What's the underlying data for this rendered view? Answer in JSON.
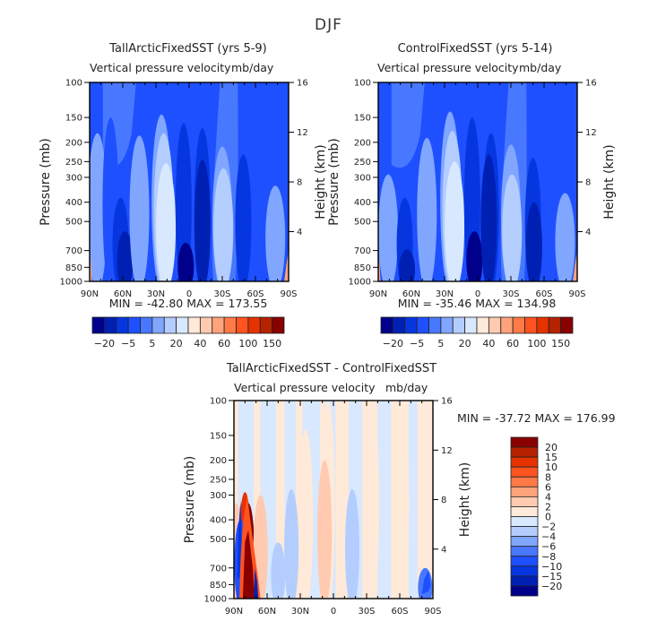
{
  "figure": {
    "title": "DJF"
  },
  "chart_data": [
    {
      "type": "heatmap",
      "id": "panel-tallarctic",
      "title": "TallArcticFixedSST (yrs 5-9)",
      "subtitle_left": "Vertical pressure velocity",
      "subtitle_right": "mb/day",
      "xlabel": "",
      "ylabel": "Pressure (mb)",
      "ylabel_right": "Height (km)",
      "x_ticks": [
        "90N",
        "60N",
        "30N",
        "0",
        "30S",
        "60S",
        "90S"
      ],
      "x_range": [
        90,
        -90
      ],
      "y_ticks": [
        "100",
        "150",
        "200",
        "250",
        "300",
        "400",
        "500",
        "700",
        "850",
        "1000"
      ],
      "y_tick_values": [
        100,
        150,
        200,
        250,
        300,
        400,
        500,
        700,
        850,
        1000
      ],
      "y_range": [
        1000,
        100
      ],
      "y_scale": "log",
      "y_right_ticks": [
        "4",
        "8",
        "12",
        "16"
      ],
      "stats": "MIN = -42.80   MAX = 173.55",
      "min": -42.8,
      "max": 173.55,
      "colorbar": {
        "orientation": "horizontal",
        "labels": [
          "-20",
          "-5",
          "5",
          "20",
          "40",
          "60",
          "100",
          "150"
        ],
        "colors": [
          "#00008b",
          "#0020b4",
          "#0536e0",
          "#1e50ff",
          "#4878ff",
          "#80a6ff",
          "#b4cdff",
          "#d7e8ff",
          "#ffe9d8",
          "#ffcab0",
          "#ffa47a",
          "#ff7a46",
          "#ff5320",
          "#e63200",
          "#b42200",
          "#880000"
        ]
      },
      "features": [
        {
          "lat": 83,
          "p_top": 180,
          "level": 5
        },
        {
          "lat": 71,
          "p_top": 150,
          "level": 3
        },
        {
          "lat": 62,
          "p_top": 380,
          "level": 2
        },
        {
          "lat": 58,
          "p_top": 560,
          "level": 1
        },
        {
          "lat": 45,
          "p_top": 185,
          "level": 5
        },
        {
          "lat": 25,
          "p_top": 145,
          "level": 5
        },
        {
          "lat": 23,
          "p_top": 180,
          "level": 6
        },
        {
          "lat": 21,
          "p_top": 255,
          "level": 7
        },
        {
          "lat": 5,
          "p_top": 160,
          "level": 2
        },
        {
          "lat": 3,
          "p_top": 640,
          "level": 0
        },
        {
          "lat": -12,
          "p_top": 170,
          "level": 2
        },
        {
          "lat": -12,
          "p_top": 245,
          "level": 1
        },
        {
          "lat": -30,
          "p_top": 210,
          "level": 5
        },
        {
          "lat": -31,
          "p_top": 270,
          "level": 6
        },
        {
          "lat": -49,
          "p_top": 230,
          "level": 2
        },
        {
          "lat": -78,
          "p_top": 330,
          "level": 5
        }
      ]
    },
    {
      "type": "heatmap",
      "id": "panel-control",
      "title": "ControlFixedSST (yrs 5-14)",
      "subtitle_left": "Vertical pressure velocity",
      "subtitle_right": "mb/day",
      "xlabel": "",
      "ylabel": "Pressure (mb)",
      "ylabel_right": "Height (km)",
      "x_ticks": [
        "90N",
        "60N",
        "30N",
        "0",
        "30S",
        "60S",
        "90S"
      ],
      "x_range": [
        90,
        -90
      ],
      "y_ticks": [
        "100",
        "150",
        "200",
        "250",
        "300",
        "400",
        "500",
        "700",
        "850",
        "1000"
      ],
      "y_tick_values": [
        100,
        150,
        200,
        250,
        300,
        400,
        500,
        700,
        850,
        1000
      ],
      "y_range": [
        1000,
        100
      ],
      "y_scale": "log",
      "y_right_ticks": [
        "4",
        "8",
        "12",
        "16"
      ],
      "stats": "MIN = -35.46   MAX = 134.98",
      "min": -35.46,
      "max": 134.98,
      "colorbar": {
        "orientation": "horizontal",
        "labels": [
          "-20",
          "-5",
          "5",
          "20",
          "40",
          "60",
          "100",
          "150"
        ],
        "colors": [
          "#00008b",
          "#0020b4",
          "#0536e0",
          "#1e50ff",
          "#4878ff",
          "#80a6ff",
          "#b4cdff",
          "#d7e8ff",
          "#ffe9d8",
          "#ffcab0",
          "#ffa47a",
          "#ff7a46",
          "#ff5320",
          "#e63200",
          "#b42200",
          "#880000"
        ]
      },
      "features": [
        {
          "lat": 81,
          "p_top": 290,
          "level": 5
        },
        {
          "lat": 66,
          "p_top": 380,
          "level": 2
        },
        {
          "lat": 64,
          "p_top": 690,
          "level": 1
        },
        {
          "lat": 46,
          "p_top": 190,
          "level": 5
        },
        {
          "lat": 25,
          "p_top": 140,
          "level": 5
        },
        {
          "lat": 23,
          "p_top": 175,
          "level": 6
        },
        {
          "lat": 21,
          "p_top": 250,
          "level": 7
        },
        {
          "lat": 5,
          "p_top": 150,
          "level": 2
        },
        {
          "lat": 3,
          "p_top": 560,
          "level": 0
        },
        {
          "lat": -12,
          "p_top": 180,
          "level": 2
        },
        {
          "lat": -10,
          "p_top": 230,
          "level": 1
        },
        {
          "lat": -30,
          "p_top": 205,
          "level": 5
        },
        {
          "lat": -31,
          "p_top": 290,
          "level": 6
        },
        {
          "lat": -50,
          "p_top": 240,
          "level": 2
        },
        {
          "lat": -51,
          "p_top": 400,
          "level": 1
        },
        {
          "lat": -79,
          "p_top": 360,
          "level": 5
        }
      ]
    },
    {
      "type": "heatmap",
      "id": "panel-difference",
      "title": "TallArcticFixedSST - ControlFixedSST",
      "subtitle_left": "Vertical pressure velocity",
      "subtitle_right": "mb/day",
      "xlabel": "",
      "ylabel": "Pressure (mb)",
      "ylabel_right": "Height (km)",
      "x_ticks": [
        "90N",
        "60N",
        "30N",
        "0",
        "30S",
        "60S",
        "90S"
      ],
      "x_range": [
        90,
        -90
      ],
      "y_ticks": [
        "100",
        "150",
        "200",
        "250",
        "300",
        "400",
        "500",
        "700",
        "850",
        "1000"
      ],
      "y_tick_values": [
        100,
        150,
        200,
        250,
        300,
        400,
        500,
        700,
        850,
        1000
      ],
      "y_range": [
        1000,
        100
      ],
      "y_scale": "log",
      "y_right_ticks": [
        "4",
        "8",
        "12",
        "16"
      ],
      "stats": "MIN = -37.72   MAX = 176.99",
      "min": -37.72,
      "max": 176.99,
      "colorbar": {
        "orientation": "vertical",
        "labels": [
          "20",
          "15",
          "10",
          "8",
          "6",
          "4",
          "2",
          "0",
          "-2",
          "-4",
          "-6",
          "-8",
          "-10",
          "-15",
          "-20"
        ],
        "colors": [
          "#880000",
          "#b42200",
          "#e63200",
          "#ff5320",
          "#ff7a46",
          "#ffa47a",
          "#ffcab0",
          "#ffe9d8",
          "#d7e8ff",
          "#b4cdff",
          "#80a6ff",
          "#4878ff",
          "#1e50ff",
          "#0536e0",
          "#0020b4",
          "#00008b"
        ]
      },
      "features": [
        {
          "lat": 88,
          "p_top": 330,
          "level": 9
        },
        {
          "lat": 80,
          "p_top": 290,
          "level": 13
        },
        {
          "lat": 77,
          "p_top": 330,
          "level": 15
        },
        {
          "lat": 84,
          "p_top": 400,
          "level": 3
        },
        {
          "lat": 72,
          "p_top": 600,
          "level": 2
        },
        {
          "lat": 66,
          "p_top": 300,
          "level": 9
        },
        {
          "lat": 50,
          "p_top": 520,
          "level": 6
        },
        {
          "lat": 38,
          "p_top": 280,
          "level": 6
        },
        {
          "lat": 25,
          "p_top": 140,
          "level": 8
        },
        {
          "lat": 5,
          "p_top": 100,
          "level": 8
        },
        {
          "lat": 8,
          "p_top": 200,
          "level": 9
        },
        {
          "lat": -10,
          "p_top": 240,
          "level": 8
        },
        {
          "lat": -17,
          "p_top": 280,
          "level": 6
        },
        {
          "lat": -35,
          "p_top": 100,
          "level": 8
        },
        {
          "lat": -62,
          "p_top": 100,
          "level": 8
        },
        {
          "lat": -83,
          "p_top": 700,
          "level": 4
        }
      ]
    }
  ]
}
